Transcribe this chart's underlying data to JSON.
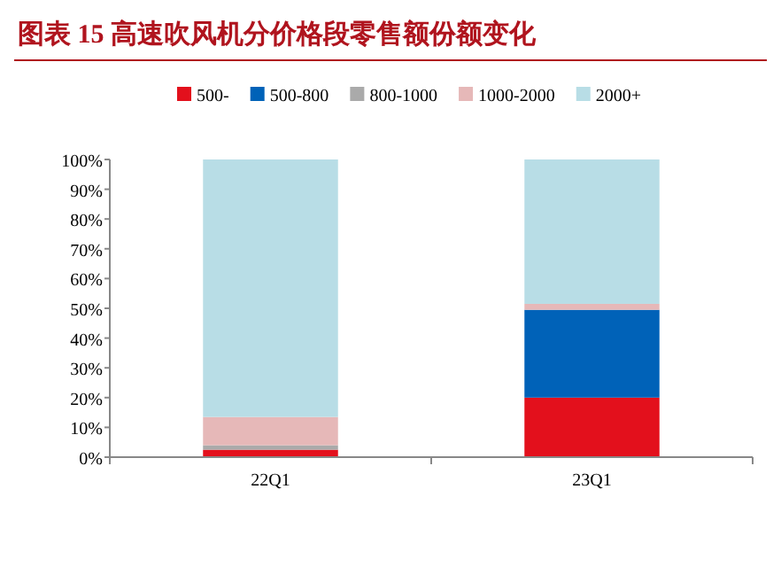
{
  "chart_data": {
    "type": "bar",
    "title": "图表 15  高速吹风机分价格段零售额份额变化",
    "stacked": true,
    "legend": "top",
    "categories": [
      "22Q1",
      "23Q1"
    ],
    "series": [
      {
        "name": "500-",
        "color": "#e3101c",
        "values": [
          2.5,
          20
        ]
      },
      {
        "name": "500-800",
        "color": "#0062b8",
        "values": [
          0,
          29.5
        ]
      },
      {
        "name": "800-1000",
        "color": "#aaaaaa",
        "values": [
          1.5,
          0
        ]
      },
      {
        "name": "1000-2000",
        "color": "#e6b8b8",
        "values": [
          9.5,
          2
        ]
      },
      {
        "name": "2000+",
        "color": "#b8dde6",
        "values": [
          86.5,
          48.5
        ]
      }
    ],
    "ylim": [
      0,
      100
    ],
    "yticks": [
      {
        "value": 0,
        "label": "0%"
      },
      {
        "value": 10,
        "label": "10%"
      },
      {
        "value": 20,
        "label": "20%"
      },
      {
        "value": 30,
        "label": "30%"
      },
      {
        "value": 40,
        "label": "40%"
      },
      {
        "value": 50,
        "label": "50%"
      },
      {
        "value": 60,
        "label": "60%"
      },
      {
        "value": 70,
        "label": "70%"
      },
      {
        "value": 80,
        "label": "80%"
      },
      {
        "value": 90,
        "label": "90%"
      },
      {
        "value": 100,
        "label": "100%"
      }
    ]
  }
}
